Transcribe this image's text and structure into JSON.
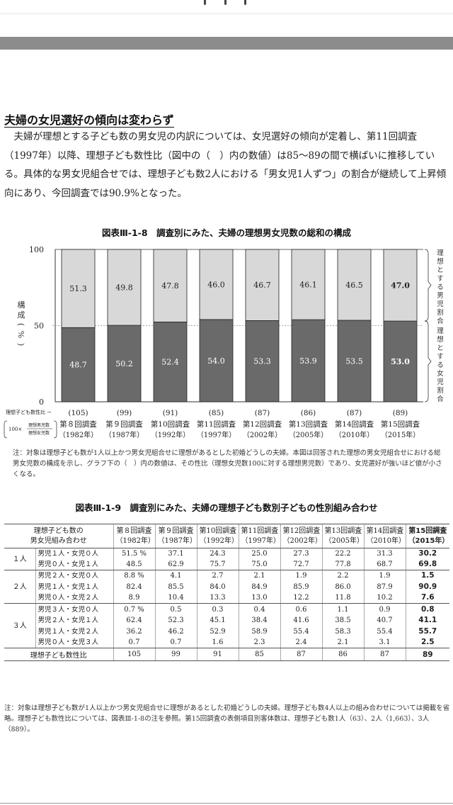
{
  "heading": "夫婦の女児選好の傾向は変わらず",
  "paragraph": "　夫婦が理想とする子ども数の男女児の内訳については、女児選好の傾向が定着し、第11回調査（1997年）以降、理想子ども数性比（図中の（　）内の数値）は85～89の間で横ばいに推移している。具体的な男女児組合せでは、理想子ども数2人における「男女児1人ずつ」の割合が継続して上昇傾向にあり、今回調査では90.9%となった。",
  "chart_data": {
    "type": "bar",
    "title": "図表Ⅲ-1-8　調査別にみた、夫婦の理想男女児数の総和の構成",
    "ylabel": "構成（%）",
    "ylim": [
      0,
      100
    ],
    "yticks": [
      "0",
      "50",
      "100"
    ],
    "categories": [
      "第８回調査",
      "第９回調査",
      "第10回調査",
      "第11回調査",
      "第12回調査",
      "第13回調査",
      "第14回調査",
      "第15回調査"
    ],
    "years": [
      "（1982年）",
      "（1987年）",
      "（1992年）",
      "（1997年）",
      "（2002年）",
      "（2005年）",
      "（2010年）",
      "（2015年）"
    ],
    "sex_ratio": [
      "(105)",
      "(99)",
      "(91)",
      "(85)",
      "(87)",
      "(86)",
      "(87)",
      "(89)"
    ],
    "series": [
      {
        "name": "理想とする女児割合",
        "values": [
          48.7,
          50.2,
          52.4,
          54.0,
          53.3,
          53.9,
          53.5,
          53.0
        ],
        "labels": [
          "48.7",
          "50.2",
          "52.4",
          "54.0",
          "53.3",
          "53.9",
          "53.5",
          "53.0"
        ],
        "color": "#6a6a6a"
      },
      {
        "name": "理想とする男児割合",
        "values": [
          51.3,
          49.8,
          47.8,
          46.0,
          46.7,
          46.1,
          46.5,
          47.0
        ],
        "labels": [
          "51.3",
          "49.8",
          "47.8",
          "46.0",
          "46.7",
          "46.1",
          "46.5",
          "47.0"
        ],
        "color": "#d8d8d8"
      }
    ],
    "ratio_row_label": "理想子ども数性比",
    "ratio_formula": {
      "prefix": "100×",
      "numerator": "理想男児数",
      "denominator": "理想女児数"
    }
  },
  "chart_note": "注：対象は理想子ども数が1人以上かつ男女児組合せに理想があるとした初婚どうしの夫婦。本図は回答された理想の男女児組合せにおける総男女児数の構成を示し、グラフ下の（　）内の数値は、その性比（理想女児数100に対する理想男児数）であり、女児選好が強いほど値が小さくなる。",
  "table": {
    "title": "図表Ⅲ-1-9　調査別にみた、夫婦の理想子ども数別子どもの性別組み合わせ",
    "corner": [
      "理想子ども数の",
      "男女児組み合わせ"
    ],
    "columns": [
      {
        "name": "第８回調査",
        "year": "（1982年）"
      },
      {
        "name": "第９回調査",
        "year": "（1987年）"
      },
      {
        "name": "第10回調査",
        "year": "（1992年）"
      },
      {
        "name": "第11回調査",
        "year": "（1997年）"
      },
      {
        "name": "第12回調査",
        "year": "（2002年）"
      },
      {
        "name": "第13回調査",
        "year": "（2005年）"
      },
      {
        "name": "第14回調査",
        "year": "（2010年）"
      },
      {
        "name": "第15回調査",
        "year": "（2015年）"
      }
    ],
    "groups": [
      {
        "label": "１人",
        "rows": [
          {
            "combo": "男児１人・女児０人",
            "values": [
              "51.5 %",
              "37.1",
              "24.3",
              "25.0",
              "27.3",
              "22.2",
              "31.3",
              "30.2"
            ]
          },
          {
            "combo": "男児０人・女児１人",
            "values": [
              "48.5",
              "62.9",
              "75.7",
              "75.0",
              "72.7",
              "77.8",
              "68.7",
              "69.8"
            ]
          }
        ]
      },
      {
        "label": "２人",
        "rows": [
          {
            "combo": "男児２人・女児０人",
            "values": [
              "8.8 %",
              "4.1",
              "2.7",
              "2.1",
              "1.9",
              "2.2",
              "1.9",
              "1.5"
            ]
          },
          {
            "combo": "男児１人・女児１人",
            "values": [
              "82.4",
              "85.5",
              "84.0",
              "84.9",
              "85.9",
              "86.0",
              "87.9",
              "90.9"
            ]
          },
          {
            "combo": "男児０人・女児２人",
            "values": [
              "8.9",
              "10.4",
              "13.3",
              "13.0",
              "12.2",
              "11.8",
              "10.2",
              "7.6"
            ]
          }
        ]
      },
      {
        "label": "３人",
        "rows": [
          {
            "combo": "男児３人・女児０人",
            "values": [
              "0.7 %",
              "0.5",
              "0.3",
              "0.4",
              "0.6",
              "1.1",
              "0.9",
              "0.8"
            ]
          },
          {
            "combo": "男児２人・女児１人",
            "values": [
              "62.4",
              "52.3",
              "45.1",
              "38.4",
              "41.6",
              "38.5",
              "40.7",
              "41.1"
            ]
          },
          {
            "combo": "男児１人・女児２人",
            "values": [
              "36.2",
              "46.2",
              "52.9",
              "58.9",
              "55.4",
              "58.3",
              "55.4",
              "55.7"
            ]
          },
          {
            "combo": "男児０人・女児３人",
            "values": [
              "0.7",
              "0.7",
              "1.6",
              "2.3",
              "2.4",
              "2.1",
              "3.1",
              "2.5"
            ]
          }
        ]
      }
    ],
    "ratio_row": {
      "label": "理想子ども数性比",
      "values": [
        "105",
        "99",
        "91",
        "85",
        "87",
        "86",
        "87",
        "89"
      ]
    }
  },
  "table_note": "注：対象は理想子ども数が1人以上かつ男女児組合せに理想があるとした初婚どうしの夫婦。理想子ども数4人以上の組み合わせについては掲載を省略。理想子ども数性比については、図表Ⅲ-1-8の注を参照。第15回調査の表側項目別客体数は、理想子ども数1人（63）、2人（1,663）、3人（889）。"
}
